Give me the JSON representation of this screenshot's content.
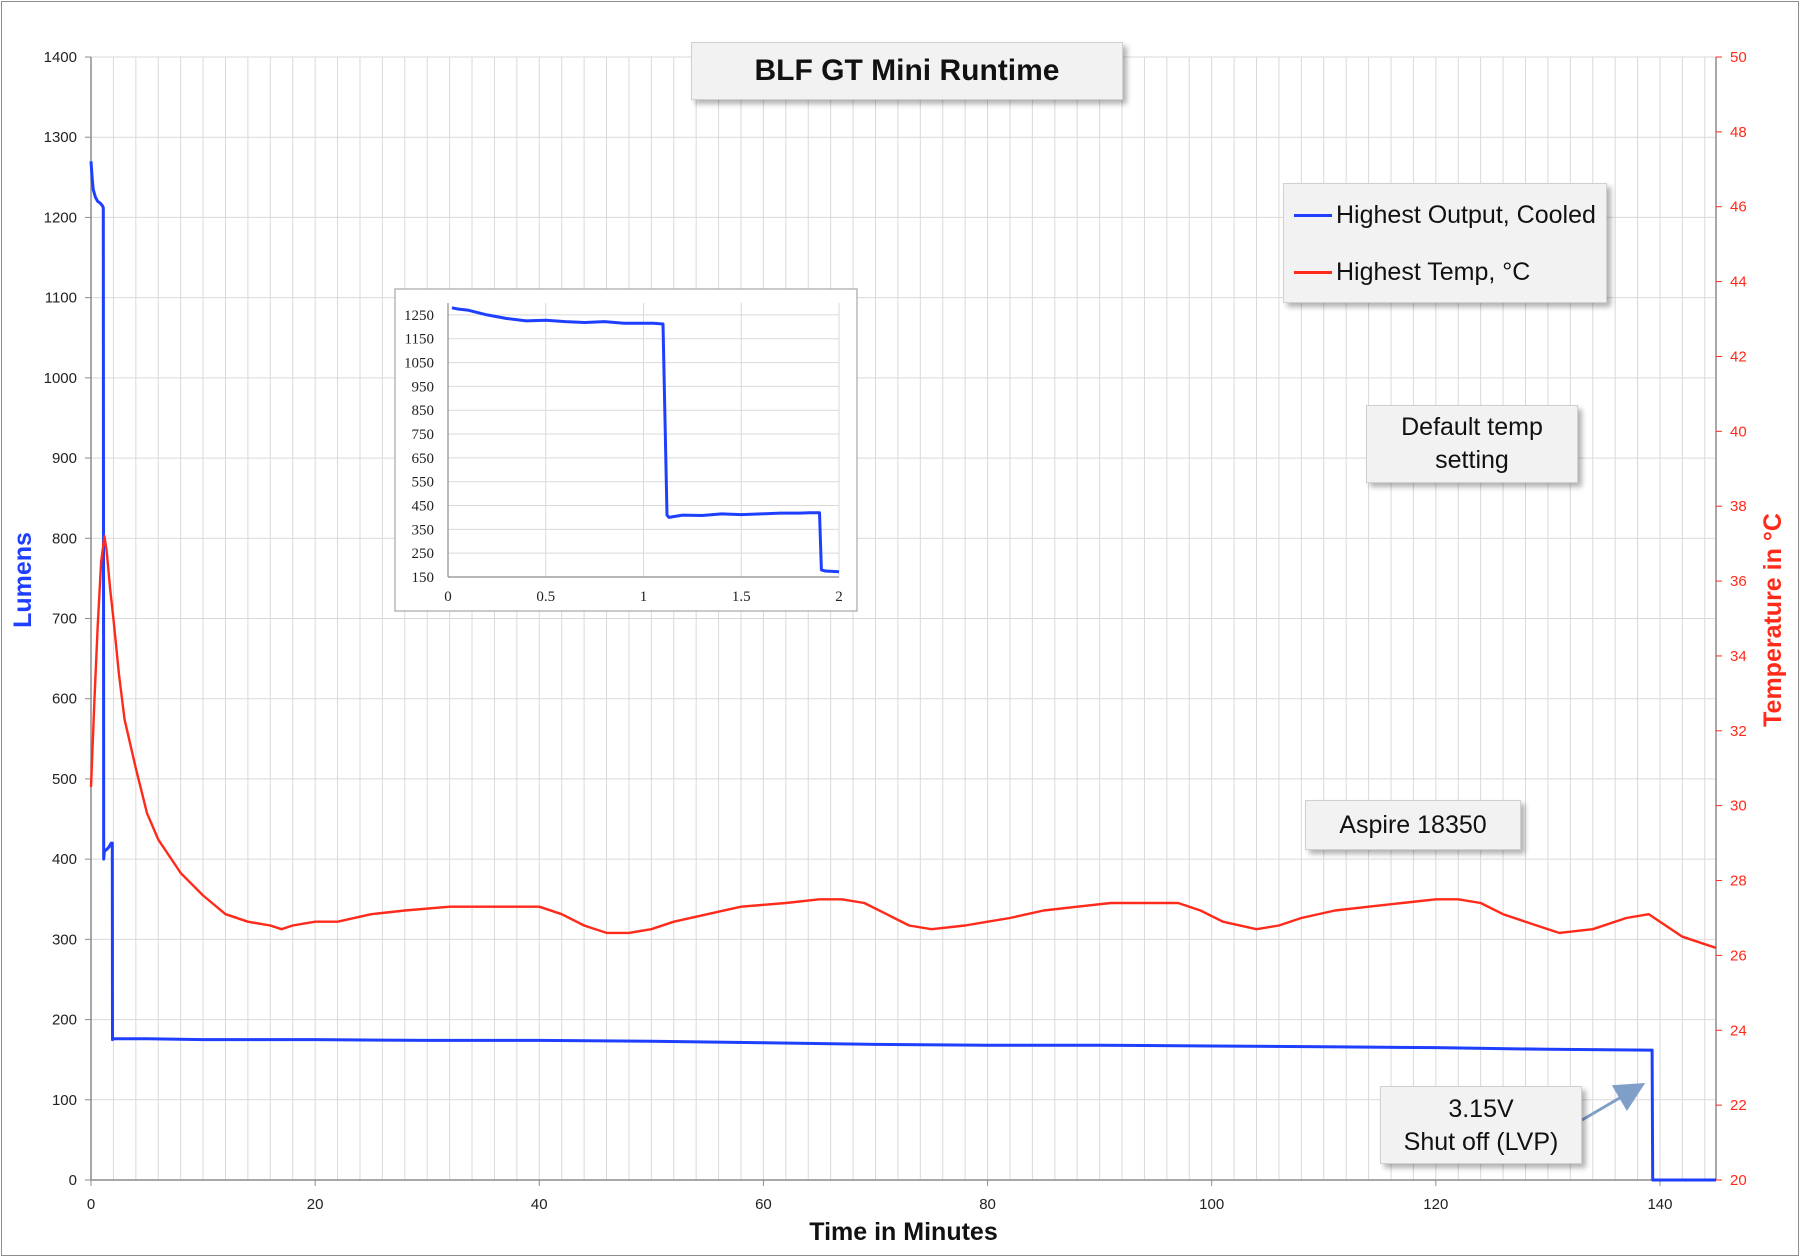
{
  "chart_data": [
    {
      "type": "line",
      "title": "BLF GT Mini Runtime",
      "xlabel": "Time in Minutes",
      "ylabel": "Lumens",
      "y2label": "Temperature in °C",
      "xlim": [
        0,
        145
      ],
      "ylim": [
        0,
        1400
      ],
      "y2lim": [
        20,
        50
      ],
      "xticks": [
        "0",
        "20",
        "40",
        "60",
        "80",
        "100",
        "120",
        "140"
      ],
      "yticks": [
        "0",
        "100",
        "200",
        "300",
        "400",
        "500",
        "600",
        "700",
        "800",
        "900",
        "1000",
        "1100",
        "1200",
        "1300",
        "1400"
      ],
      "y2ticks": [
        "20",
        "22",
        "24",
        "26",
        "28",
        "30",
        "32",
        "34",
        "36",
        "38",
        "40",
        "42",
        "44",
        "46",
        "48",
        "50"
      ],
      "grid": true,
      "legend_position": "top-right",
      "series": [
        {
          "name": "Highest Output, Cooled",
          "axis": "left",
          "color": "#1f3fff",
          "x": [
            0,
            0.1,
            0.2,
            0.4,
            0.6,
            0.8,
            1.0,
            1.1,
            1.13,
            1.2,
            1.4,
            1.6,
            1.8,
            1.9,
            1.92,
            2.0,
            5,
            10,
            20,
            30,
            40,
            50,
            60,
            70,
            80,
            90,
            100,
            110,
            120,
            130,
            139,
            139.3,
            139.35,
            145
          ],
          "y": [
            1270,
            1250,
            1235,
            1225,
            1220,
            1218,
            1215,
            1212,
            400,
            410,
            412,
            415,
            420,
            420,
            175,
            176,
            176,
            175,
            175,
            174,
            174,
            173,
            171,
            169,
            168,
            168,
            167,
            166,
            165,
            163,
            162,
            162,
            0,
            0
          ]
        },
        {
          "name": "Highest Temp, °C",
          "axis": "right",
          "color": "#ff2a1a",
          "x": [
            0,
            0.3,
            0.6,
            0.9,
            1.2,
            1.4,
            1.7,
            2.0,
            2.5,
            3,
            4,
            5,
            6,
            8,
            10,
            12,
            14,
            16,
            17,
            18,
            20,
            22,
            25,
            28,
            32,
            36,
            38,
            40,
            42,
            44,
            46,
            48,
            50,
            52,
            55,
            58,
            62,
            65,
            67,
            69,
            71,
            73,
            75,
            78,
            80,
            82,
            85,
            88,
            91,
            94,
            97,
            99,
            101,
            104,
            106,
            108,
            111,
            114,
            117,
            120,
            122,
            124,
            126,
            129,
            131,
            134,
            137,
            139,
            140,
            142,
            144,
            145
          ],
          "y": [
            30.5,
            32.8,
            34.8,
            36.5,
            37.2,
            36.8,
            35.8,
            35.0,
            33.5,
            32.3,
            31.0,
            29.8,
            29.1,
            28.2,
            27.6,
            27.1,
            26.9,
            26.8,
            26.7,
            26.8,
            26.9,
            26.9,
            27.1,
            27.2,
            27.3,
            27.3,
            27.3,
            27.3,
            27.1,
            26.8,
            26.6,
            26.6,
            26.7,
            26.9,
            27.1,
            27.3,
            27.4,
            27.5,
            27.5,
            27.4,
            27.1,
            26.8,
            26.7,
            26.8,
            26.9,
            27.0,
            27.2,
            27.3,
            27.4,
            27.4,
            27.4,
            27.2,
            26.9,
            26.7,
            26.8,
            27.0,
            27.2,
            27.3,
            27.4,
            27.5,
            27.5,
            27.4,
            27.1,
            26.8,
            26.6,
            26.7,
            27.0,
            27.1,
            26.9,
            26.5,
            26.3,
            26.2
          ]
        }
      ]
    },
    {
      "type": "line",
      "title": "",
      "xlim": [
        0,
        2
      ],
      "ylim": [
        150,
        1300
      ],
      "xticks": [
        "0",
        "0.5",
        "1",
        "1.5",
        "2"
      ],
      "yticks": [
        "150",
        "250",
        "350",
        "450",
        "550",
        "650",
        "750",
        "850",
        "950",
        "1050",
        "1150",
        "1250"
      ],
      "grid": true,
      "series": [
        {
          "color": "#1f3fff",
          "x": [
            0.02,
            0.05,
            0.1,
            0.2,
            0.3,
            0.4,
            0.5,
            0.6,
            0.7,
            0.8,
            0.9,
            1.0,
            1.05,
            1.1,
            1.12,
            1.13,
            1.2,
            1.3,
            1.4,
            1.5,
            1.6,
            1.7,
            1.8,
            1.85,
            1.9,
            1.91,
            1.93,
            2.0
          ],
          "y": [
            1280,
            1275,
            1270,
            1250,
            1235,
            1225,
            1228,
            1222,
            1218,
            1222,
            1215,
            1215,
            1215,
            1212,
            410,
            400,
            410,
            408,
            415,
            412,
            415,
            418,
            418,
            420,
            420,
            180,
            175,
            172
          ]
        }
      ]
    }
  ],
  "labels": {
    "legend": [
      "Highest Output, Cooled",
      "Highest Temp, °C"
    ],
    "note_default_line1": "Default temp",
    "note_default_line2": "setting",
    "note_cell": "Aspire 18350",
    "note_lvp_line1": "3.15V",
    "note_lvp_line2": "Shut off (LVP)"
  },
  "colors": {
    "lumens": "#1f3fff",
    "temp": "#ff2a1a",
    "grid": "#d9d9d9",
    "axis": "#8c8c8c",
    "arrow": "#7f9fc8"
  }
}
